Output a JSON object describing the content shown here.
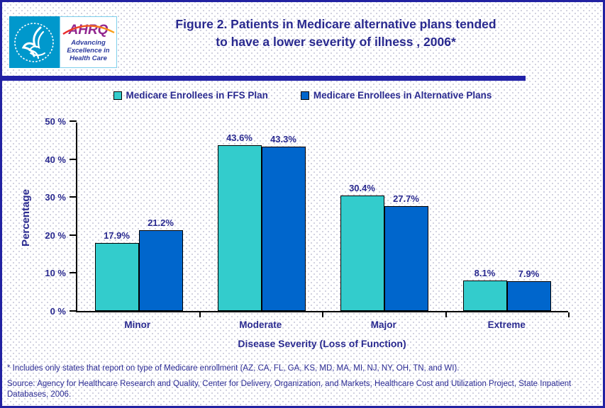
{
  "header": {
    "title_line1": "Figure 2. Patients in Medicare alternative plans tended",
    "title_line2": "to have a lower severity of illness , 2006*",
    "logo": {
      "acronym": "AHRQ",
      "tagline_line1": "Advancing",
      "tagline_line2": "Excellence in",
      "tagline_line3": "Health Care"
    }
  },
  "legend": [
    {
      "label": "Medicare Enrollees in FFS Plan",
      "color": "#33CCCC"
    },
    {
      "label": "Medicare Enrollees in Alternative Plans",
      "color": "#0066CC"
    }
  ],
  "chart_data": {
    "type": "bar",
    "categories": [
      "Minor",
      "Moderate",
      "Major",
      "Extreme"
    ],
    "series": [
      {
        "name": "Medicare Enrollees in FFS Plan",
        "color": "#33CCCC",
        "values": [
          17.9,
          43.6,
          30.4,
          8.1
        ]
      },
      {
        "name": "Medicare Enrollees in Alternative Plans",
        "color": "#0066CC",
        "values": [
          21.2,
          43.3,
          27.7,
          7.9
        ]
      }
    ],
    "value_labels": [
      [
        "17.9%",
        "43.6%",
        "30.4%",
        "8.1%"
      ],
      [
        "21.2%",
        "43.3%",
        "27.7%",
        "7.9%"
      ]
    ],
    "title": "Figure 2. Patients in Medicare alternative plans tended to have a lower severity of illness , 2006*",
    "xlabel": "Disease Severity (Loss of Function)",
    "ylabel": "Percentage",
    "ylim": [
      0,
      50
    ],
    "ytick_labels": [
      "0 %",
      "10 %",
      "20 %",
      "30 %",
      "40 %",
      "50 %"
    ],
    "grid": false,
    "legend_position": "top"
  },
  "footnotes": {
    "note": "* Includes only states that report on type of Medicare enrollment (AZ, CA, FL, GA, KS, MD, MA, MI, NJ, NY, OH, TN, and WI).",
    "source": "Source: Agency for Healthcare Research and Quality, Center for Delivery, Organization, and Markets, Healthcare Cost and Utilization Project, State Inpatient Databases, 2006."
  },
  "colors": {
    "navy_text": "#29298F",
    "page_border": "#2222A2",
    "divider": "#2121A8",
    "ffs_teal": "#33CCCC",
    "alt_blue": "#0066CC",
    "seal_cyan": "#0098CC",
    "ahrq_purple": "#92278F"
  }
}
